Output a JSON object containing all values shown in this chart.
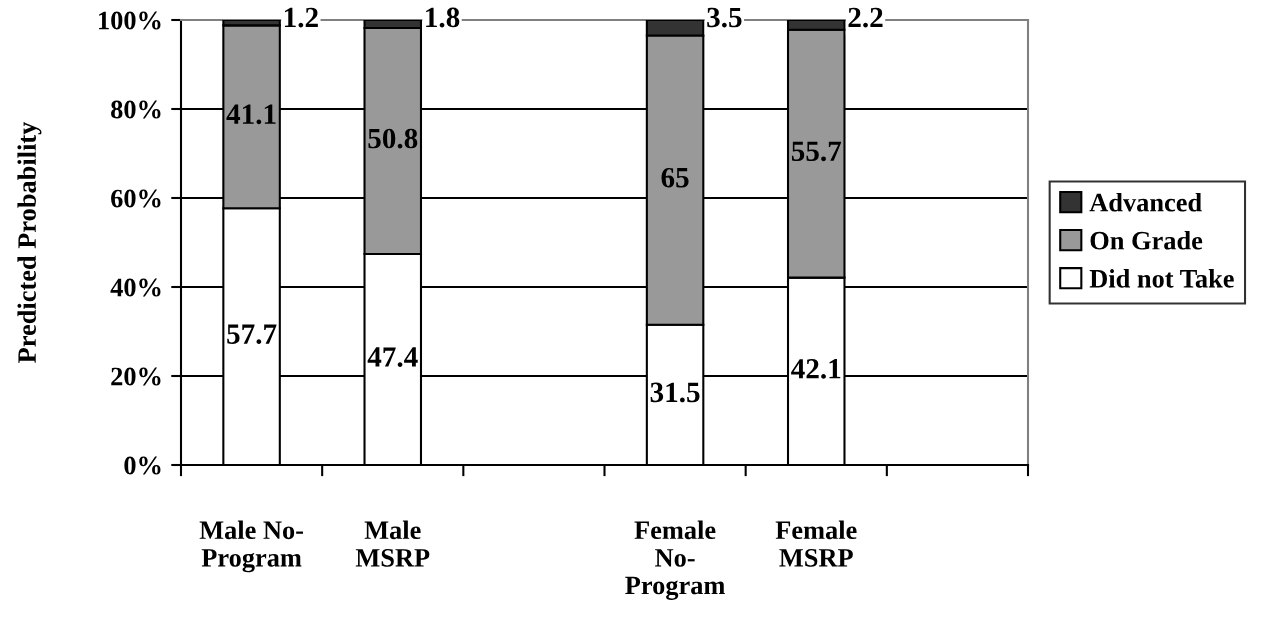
{
  "chart_data": {
    "type": "bar",
    "stacked": true,
    "ylabel": "Predicted Probability",
    "categories": [
      "Male No-\nProgram",
      "Male\nMSRP",
      null,
      "Female\nNo-\nProgram",
      "Female\nMSRP",
      null
    ],
    "series": [
      {
        "name": "Did not Take",
        "color": "#ffffff",
        "values": [
          57.7,
          47.4,
          null,
          31.5,
          42.1,
          null
        ]
      },
      {
        "name": "On Grade",
        "color": "#999999",
        "values": [
          41.1,
          50.8,
          null,
          65,
          55.7,
          null
        ]
      },
      {
        "name": "Advanced",
        "color": "#333333",
        "values": [
          1.2,
          1.8,
          null,
          3.5,
          2.2,
          null
        ]
      }
    ],
    "ylim": [
      0,
      100
    ],
    "yticks": [
      {
        "value": 0,
        "label": "0%"
      },
      {
        "value": 20,
        "label": "20%"
      },
      {
        "value": 40,
        "label": "40%"
      },
      {
        "value": 60,
        "label": "60%"
      },
      {
        "value": 80,
        "label": "80%"
      },
      {
        "value": 100,
        "label": "100%"
      }
    ],
    "grid": "y",
    "legend": "right",
    "data_labels": true
  }
}
